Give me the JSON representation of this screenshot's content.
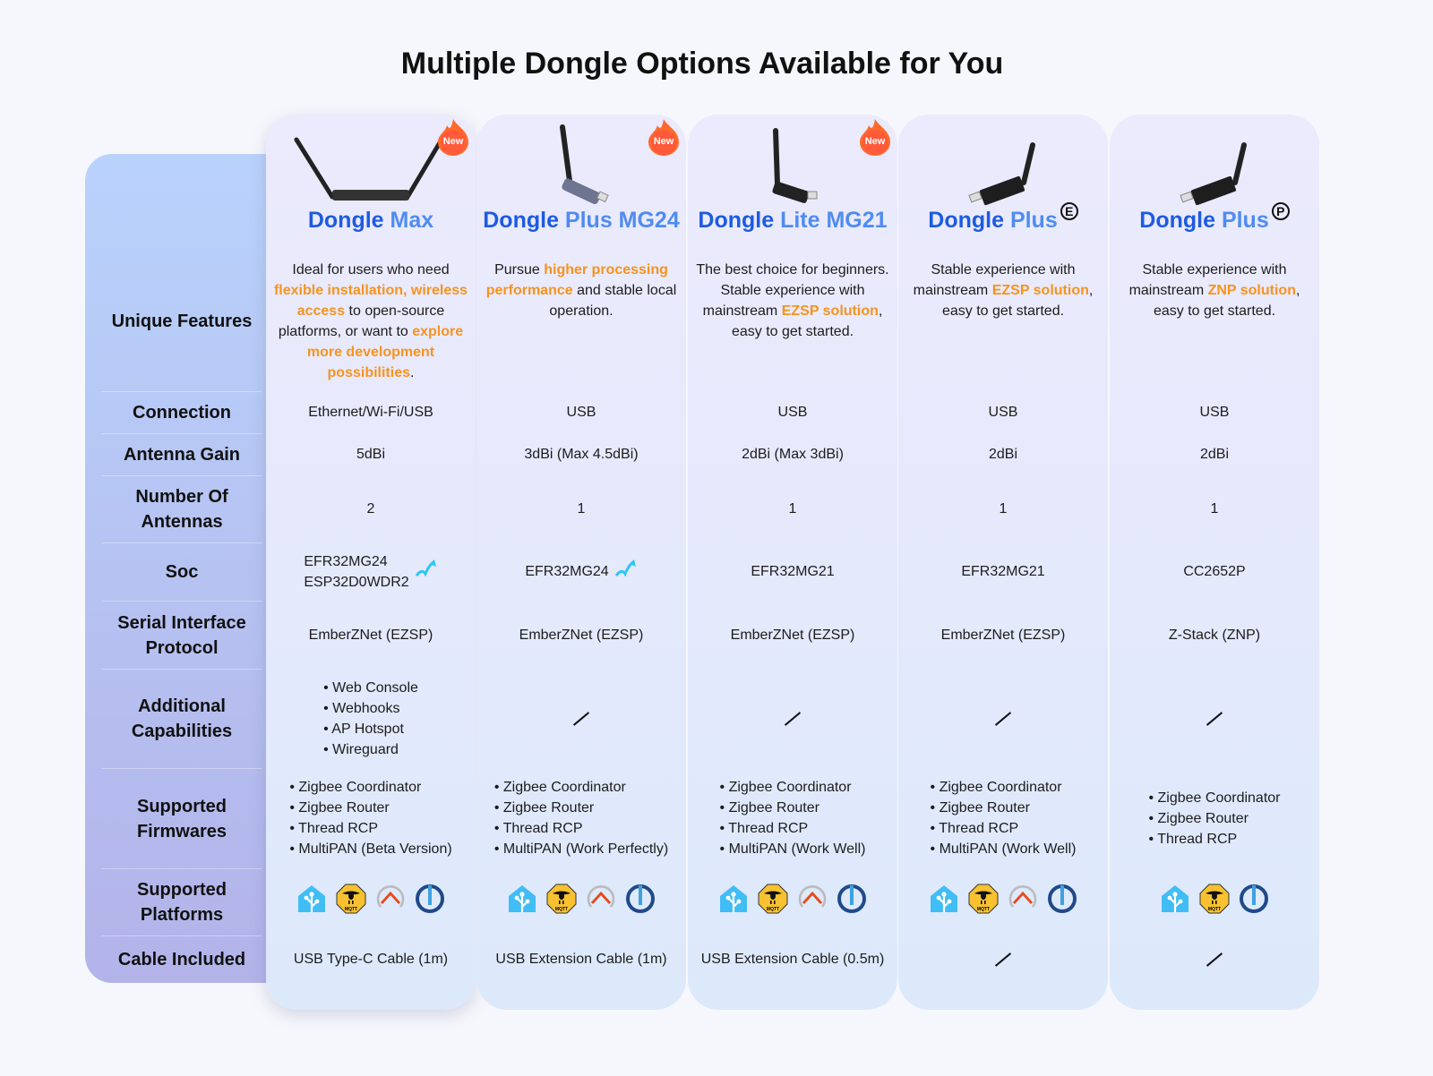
{
  "title": "Multiple Dongle Options Available for You",
  "row_labels": [
    "Unique Features",
    "Connection",
    "Antenna Gain",
    "Number Of Antennas",
    "Soc",
    "Serial Interface Protocol",
    "Additional Capabilities",
    "Supported Firmwares",
    "Supported Platforms",
    "Cable Included"
  ],
  "colors": {
    "brand_dark": "#1d5be0",
    "brand_light": "#4f8cf0",
    "highlight": "#f7931e"
  },
  "new_badge": "New",
  "products": [
    {
      "name_a": "Dongle",
      "name_b": "Max",
      "mark": "",
      "is_new": true,
      "image": "dual-antenna-gateway",
      "features": [
        {
          "t": "Ideal for users who need "
        },
        {
          "t": "flexible installation, wireless access",
          "h": true
        },
        {
          "t": " to open-source platforms, or want to "
        },
        {
          "t": "explore more development possibilities",
          "h": true
        },
        {
          "t": "."
        }
      ],
      "connection": "Ethernet/Wi-Fi/USB",
      "gain": "5dBi",
      "antennas": "2",
      "soc": [
        "EFR32MG24",
        "ESP32D0WDR2"
      ],
      "soc_upgrade": true,
      "protocol": "EmberZNet (EZSP)",
      "capabilities": [
        "Web Console",
        "Webhooks",
        "AP Hotspot",
        "Wireguard"
      ],
      "firmwares": [
        "Zigbee Coordinator",
        "Zigbee Router",
        "Thread RCP",
        "MultiPAN (Beta Version)"
      ],
      "platforms": [
        "home-assistant-icon",
        "mqtt-icon",
        "openhab-icon",
        "iobroker-icon"
      ],
      "cable": "USB Type-C Cable (1m)"
    },
    {
      "name_a": "Dongle",
      "name_b": "Plus MG24",
      "mark": "",
      "is_new": true,
      "image": "usb-stick-gray",
      "features": [
        {
          "t": "Pursue "
        },
        {
          "t": "higher processing performance",
          "h": true
        },
        {
          "t": " and stable local operation."
        }
      ],
      "connection": "USB",
      "gain": "3dBi (Max 4.5dBi)",
      "antennas": "1",
      "soc": [
        "EFR32MG24"
      ],
      "soc_upgrade": true,
      "protocol": "EmberZNet (EZSP)",
      "capabilities": [],
      "firmwares": [
        "Zigbee Coordinator",
        "Zigbee Router",
        "Thread RCP",
        "MultiPAN (Work Perfectly)"
      ],
      "platforms": [
        "home-assistant-icon",
        "mqtt-icon",
        "openhab-icon",
        "iobroker-icon"
      ],
      "cable": "USB Extension Cable (1m)"
    },
    {
      "name_a": "Dongle",
      "name_b": "Lite MG21",
      "mark": "",
      "is_new": true,
      "image": "usb-stick-black-upright",
      "features": [
        {
          "t": "The best choice for beginners. Stable experience with mainstream "
        },
        {
          "t": "EZSP solution",
          "h": true
        },
        {
          "t": ", easy to get started."
        }
      ],
      "connection": "USB",
      "gain": "2dBi (Max 3dBi)",
      "antennas": "1",
      "soc": [
        "EFR32MG21"
      ],
      "soc_upgrade": false,
      "protocol": "EmberZNet (EZSP)",
      "capabilities": [],
      "firmwares": [
        "Zigbee Coordinator",
        "Zigbee Router",
        "Thread RCP",
        "MultiPAN (Work Well)"
      ],
      "platforms": [
        "home-assistant-icon",
        "mqtt-icon",
        "openhab-icon",
        "iobroker-icon"
      ],
      "cable": "USB Extension Cable (0.5m)"
    },
    {
      "name_a": "Dongle",
      "name_b": "Plus",
      "mark": "E",
      "is_new": false,
      "image": "usb-stick-black",
      "features": [
        {
          "t": "Stable experience with mainstream "
        },
        {
          "t": "EZSP solution",
          "h": true
        },
        {
          "t": ", easy to get started."
        }
      ],
      "connection": "USB",
      "gain": "2dBi",
      "antennas": "1",
      "soc": [
        "EFR32MG21"
      ],
      "soc_upgrade": false,
      "protocol": "EmberZNet (EZSP)",
      "capabilities": [],
      "firmwares": [
        "Zigbee Coordinator",
        "Zigbee Router",
        "Thread RCP",
        "MultiPAN (Work Well)"
      ],
      "platforms": [
        "home-assistant-icon",
        "mqtt-icon",
        "openhab-icon",
        "iobroker-icon"
      ],
      "cable": ""
    },
    {
      "name_a": "Dongle",
      "name_b": "Plus",
      "mark": "P",
      "is_new": false,
      "image": "usb-stick-black",
      "features": [
        {
          "t": "Stable experience with mainstream "
        },
        {
          "t": "ZNP solution",
          "h": true
        },
        {
          "t": ", easy to get started."
        }
      ],
      "connection": "USB",
      "gain": "2dBi",
      "antennas": "1",
      "soc": [
        "CC2652P"
      ],
      "soc_upgrade": false,
      "protocol": "Z-Stack (ZNP)",
      "capabilities": [],
      "firmwares": [
        "Zigbee Coordinator",
        "Zigbee Router",
        "Thread RCP"
      ],
      "platforms": [
        "home-assistant-icon",
        "mqtt-icon",
        "iobroker-icon"
      ],
      "cable": ""
    }
  ]
}
